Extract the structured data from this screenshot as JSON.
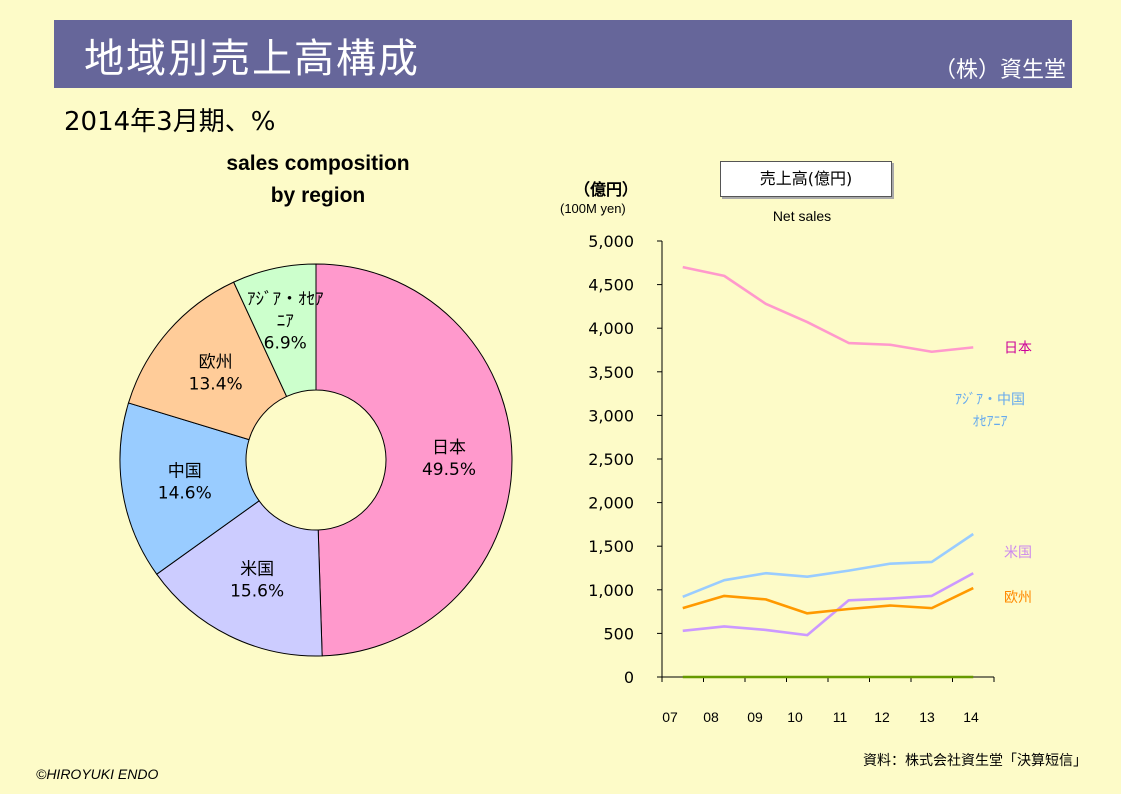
{
  "header": {
    "title": "地域別売上高構成",
    "company": "（株）資生堂"
  },
  "subtitle": "2014年3月期、%",
  "pie": {
    "title_line1": "sales composition",
    "title_line2": "by region"
  },
  "line": {
    "title": "売上高(億円)",
    "subtitle": "Net sales",
    "y_unit": "（億円）",
    "y_unit_en": "(100M yen)"
  },
  "footer": {
    "source": "資料：株式会社資生堂「決算短信」",
    "copyright": "©HIROYUKI ENDO"
  },
  "chart_data": [
    {
      "type": "pie",
      "title": "sales composition by region",
      "slices": [
        {
          "label": "日本",
          "value": 49.5,
          "value_label": "49.5%",
          "color": "#ff99cc"
        },
        {
          "label": "米国",
          "value": 15.6,
          "value_label": "15.6%",
          "color": "#ccccff"
        },
        {
          "label": "中国",
          "value": 14.6,
          "value_label": "14.6%",
          "color": "#99ccff"
        },
        {
          "label": "欧州",
          "value": 13.4,
          "value_label": "13.4%",
          "color": "#ffcc99"
        },
        {
          "label_lines": [
            "ｱｼﾞｱ・ｵｾｱ",
            "ﾆｱ"
          ],
          "value": 6.9,
          "value_label": "6.9%",
          "color": "#ccffcc"
        }
      ]
    },
    {
      "type": "line",
      "title": "売上高(億円)",
      "x": [
        "07",
        "08",
        "09",
        "10",
        "11",
        "12",
        "13",
        "14"
      ],
      "ylim": [
        0,
        5000
      ],
      "yticks": [
        "0",
        "500",
        "1,000",
        "1,500",
        "2,000",
        "2,500",
        "3,000",
        "3,500",
        "4,000",
        "4,500",
        "5,000"
      ],
      "series": [
        {
          "name": "日本",
          "label_lines": [
            "日本"
          ],
          "color": "#ff99cc",
          "label_color": "#cc0099",
          "values": [
            4700,
            4600,
            4280,
            4070,
            3830,
            3810,
            3730,
            3780
          ]
        },
        {
          "name": "アジア・中国 オセアニア",
          "label_lines": [
            "ｱｼﾞｱ・中国",
            "ｵｾｱﾆｱ"
          ],
          "color": "#99ccff",
          "label_color": "#66aaee",
          "values": [
            920,
            1110,
            1190,
            1150,
            1220,
            1300,
            1320,
            1640
          ]
        },
        {
          "name": "米国",
          "label_lines": [
            "米国"
          ],
          "color": "#cc99ff",
          "label_color": "#cc88ee",
          "values": [
            530,
            580,
            540,
            480,
            880,
            900,
            930,
            1190
          ]
        },
        {
          "name": "欧州",
          "label_lines": [
            "欧州"
          ],
          "color": "#ff9900",
          "label_color": "#ff8800",
          "values": [
            790,
            930,
            890,
            730,
            780,
            820,
            790,
            1020
          ]
        },
        {
          "name": "",
          "label_lines": [],
          "color": "#669900",
          "label_color": "#669900",
          "values": [
            0,
            0,
            0,
            0,
            0,
            0,
            0,
            0
          ]
        }
      ]
    }
  ]
}
